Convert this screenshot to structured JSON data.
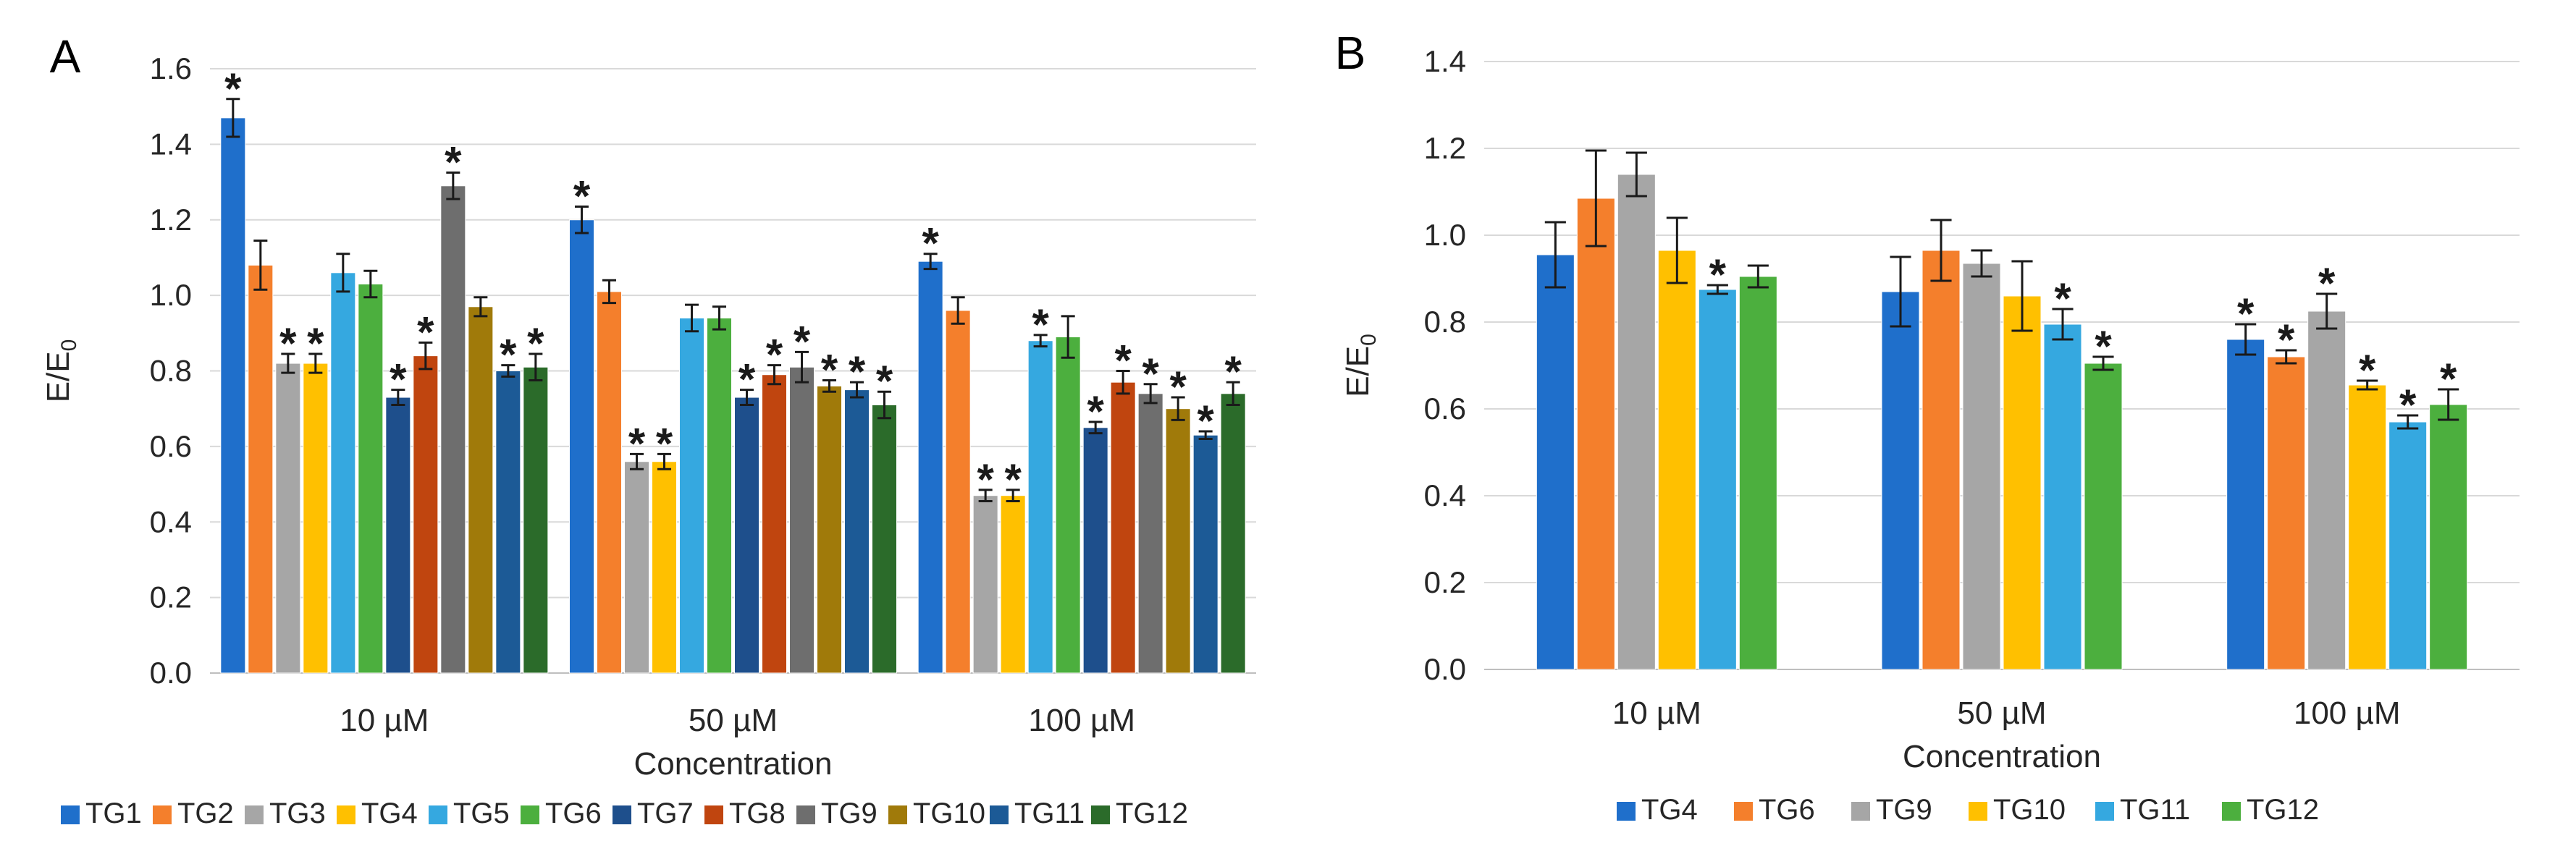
{
  "chart_data": [
    {
      "type": "bar",
      "panel_label": "A",
      "xlabel": "Concentration",
      "ylabel": "E/E",
      "ylabel_sub": "0",
      "ylim": [
        0,
        1.6
      ],
      "yticks": [
        "0.0",
        "0.2",
        "0.4",
        "0.6",
        "0.8",
        "1.0",
        "1.2",
        "1.4",
        "1.6"
      ],
      "grid": true,
      "legend_position": "bottom",
      "categories": [
        "10 µM",
        "50 µM",
        "100 µM"
      ],
      "series": [
        {
          "name": "TG1",
          "color": "#1f6fcb",
          "values": [
            1.47,
            1.2,
            1.09
          ],
          "errors": [
            0.05,
            0.035,
            0.02
          ],
          "significant": [
            true,
            true,
            true
          ]
        },
        {
          "name": "TG2",
          "color": "#f47f2c",
          "values": [
            1.08,
            1.01,
            0.96
          ],
          "errors": [
            0.065,
            0.03,
            0.035
          ],
          "significant": [
            false,
            false,
            false
          ]
        },
        {
          "name": "TG3",
          "color": "#a6a6a6",
          "values": [
            0.82,
            0.56,
            0.47
          ],
          "errors": [
            0.025,
            0.02,
            0.015
          ],
          "significant": [
            true,
            true,
            true
          ]
        },
        {
          "name": "TG4",
          "color": "#ffc000",
          "values": [
            0.82,
            0.56,
            0.47
          ],
          "errors": [
            0.025,
            0.02,
            0.015
          ],
          "significant": [
            true,
            true,
            true
          ]
        },
        {
          "name": "TG5",
          "color": "#35a8e0",
          "values": [
            1.06,
            0.94,
            0.88
          ],
          "errors": [
            0.05,
            0.035,
            0.015
          ],
          "significant": [
            false,
            false,
            true
          ]
        },
        {
          "name": "TG6",
          "color": "#4caf3e",
          "values": [
            1.03,
            0.94,
            0.89
          ],
          "errors": [
            0.035,
            0.03,
            0.055
          ],
          "significant": [
            false,
            false,
            false
          ]
        },
        {
          "name": "TG7",
          "color": "#1e4f8c",
          "values": [
            0.73,
            0.73,
            0.65
          ],
          "errors": [
            0.02,
            0.02,
            0.015
          ],
          "significant": [
            true,
            true,
            true
          ]
        },
        {
          "name": "TG8",
          "color": "#c0450f",
          "values": [
            0.84,
            0.79,
            0.77
          ],
          "errors": [
            0.035,
            0.025,
            0.03
          ],
          "significant": [
            true,
            true,
            true
          ]
        },
        {
          "name": "TG9",
          "color": "#6e6e6e",
          "values": [
            1.29,
            0.81,
            0.74
          ],
          "errors": [
            0.035,
            0.04,
            0.025
          ],
          "significant": [
            true,
            true,
            true
          ]
        },
        {
          "name": "TG10",
          "color": "#a07a0a",
          "values": [
            0.97,
            0.76,
            0.7
          ],
          "errors": [
            0.025,
            0.015,
            0.03
          ],
          "significant": [
            false,
            true,
            true
          ]
        },
        {
          "name": "TG11",
          "color": "#1c5a96",
          "values": [
            0.8,
            0.75,
            0.63
          ],
          "errors": [
            0.015,
            0.02,
            0.01
          ],
          "significant": [
            true,
            true,
            true
          ]
        },
        {
          "name": "TG12",
          "color": "#2b6b2a",
          "values": [
            0.81,
            0.71,
            0.74
          ],
          "errors": [
            0.035,
            0.035,
            0.03
          ],
          "significant": [
            true,
            true,
            true
          ]
        }
      ]
    },
    {
      "type": "bar",
      "panel_label": "B",
      "xlabel": "Concentration",
      "ylabel": "E/E",
      "ylabel_sub": "0",
      "ylim": [
        0,
        1.4
      ],
      "yticks": [
        "0.0",
        "0.2",
        "0.4",
        "0.6",
        "0.8",
        "1.0",
        "1.2",
        "1.4"
      ],
      "grid": true,
      "legend_position": "bottom",
      "categories": [
        "10 µM",
        "50 µM",
        "100 µM"
      ],
      "series": [
        {
          "name": "TG4",
          "color": "#1f6fcb",
          "values": [
            0.955,
            0.87,
            0.76
          ],
          "errors": [
            0.075,
            0.08,
            0.035
          ],
          "significant": [
            false,
            false,
            true
          ]
        },
        {
          "name": "TG6",
          "color": "#f47f2c",
          "values": [
            1.085,
            0.965,
            0.72
          ],
          "errors": [
            0.11,
            0.07,
            0.015
          ],
          "significant": [
            false,
            false,
            true
          ]
        },
        {
          "name": "TG9",
          "color": "#a6a6a6",
          "values": [
            1.14,
            0.935,
            0.825
          ],
          "errors": [
            0.05,
            0.03,
            0.04
          ],
          "significant": [
            false,
            false,
            true
          ]
        },
        {
          "name": "TG10",
          "color": "#ffc000",
          "values": [
            0.965,
            0.86,
            0.655
          ],
          "errors": [
            0.075,
            0.08,
            0.01
          ],
          "significant": [
            false,
            false,
            true
          ]
        },
        {
          "name": "TG11",
          "color": "#35a8e0",
          "values": [
            0.875,
            0.795,
            0.57
          ],
          "errors": [
            0.01,
            0.035,
            0.015
          ],
          "significant": [
            true,
            true,
            true
          ]
        },
        {
          "name": "TG12",
          "color": "#4caf3e",
          "values": [
            0.905,
            0.705,
            0.61
          ],
          "errors": [
            0.025,
            0.015,
            0.035
          ],
          "significant": [
            false,
            true,
            true
          ]
        }
      ]
    }
  ],
  "star_symbol": "*"
}
